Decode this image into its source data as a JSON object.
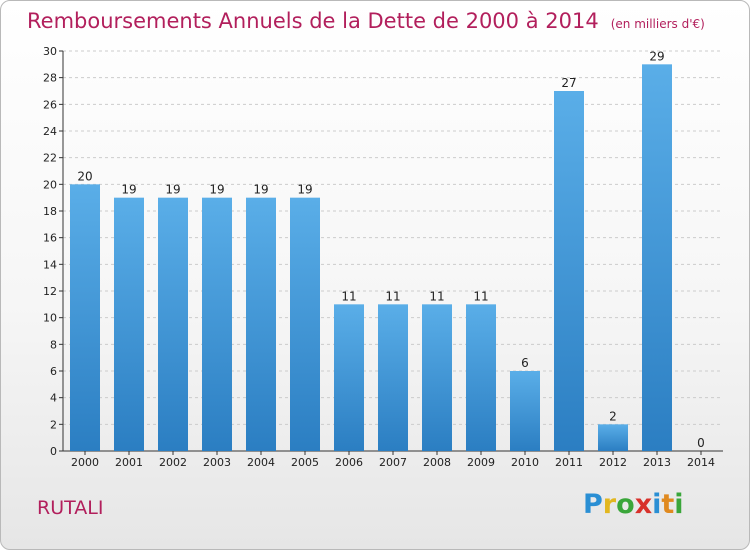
{
  "title": "Remboursements Annuels de la Dette de 2000 à 2014",
  "unit": "(en milliers d'€)",
  "commune": "RUTALI",
  "logo": {
    "parts": [
      "P",
      "r",
      "o",
      "x",
      "i",
      "t",
      "i"
    ],
    "colors": [
      "#2a8fd4",
      "#e2b720",
      "#3aa63a",
      "#d8312b",
      "#2a8fd4",
      "#e08a20",
      "#3aa63a"
    ]
  },
  "colors": {
    "bar_light": "#5aaee8",
    "bar_dark": "#2b7ec2",
    "title": "#b21f5c",
    "grid": "#cccccc"
  },
  "chart_data": {
    "type": "bar",
    "title": "Remboursements Annuels de la Dette de 2000 à 2014",
    "subtitle": "(en milliers d'€)",
    "xlabel": "",
    "ylabel": "",
    "categories": [
      "2000",
      "2001",
      "2002",
      "2003",
      "2004",
      "2005",
      "2006",
      "2007",
      "2008",
      "2009",
      "2010",
      "2011",
      "2012",
      "2013",
      "2014"
    ],
    "values": [
      20,
      19,
      19,
      19,
      19,
      19,
      11,
      11,
      11,
      11,
      6,
      27,
      2,
      29,
      0
    ],
    "ylim": [
      0,
      30
    ],
    "yticks": [
      0,
      2,
      4,
      6,
      8,
      10,
      12,
      14,
      16,
      18,
      20,
      22,
      24,
      26,
      28,
      30
    ],
    "grid": true
  }
}
